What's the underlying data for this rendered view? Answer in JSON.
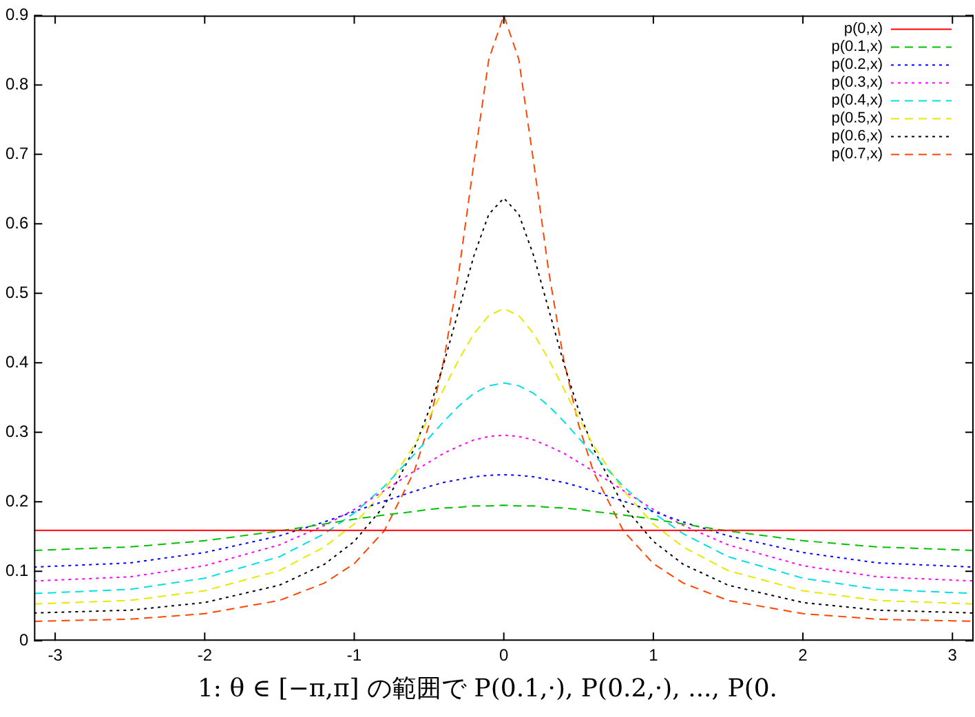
{
  "chart_data": {
    "type": "line",
    "x": [
      -3.14159,
      -2.5,
      -2,
      -1.5,
      -1.2,
      -1,
      -0.8,
      -0.6,
      -0.5,
      -0.4,
      -0.3,
      -0.2,
      -0.1,
      0,
      0.1,
      0.2,
      0.3,
      0.4,
      0.5,
      0.6,
      0.8,
      1,
      1.2,
      1.5,
      2,
      2.5,
      3.14159
    ],
    "series": [
      {
        "name": "p(0,x)",
        "color": "#ff0000",
        "line_style": "solid",
        "values": [
          0.159,
          0.159,
          0.159,
          0.159,
          0.159,
          0.159,
          0.159,
          0.159,
          0.159,
          0.159,
          0.159,
          0.159,
          0.159,
          0.159,
          0.159,
          0.159,
          0.159,
          0.159,
          0.159,
          0.159,
          0.159,
          0.159,
          0.159,
          0.159,
          0.159,
          0.159,
          0.159
        ]
      },
      {
        "name": "p(0.1,x)",
        "color": "#00c000",
        "line_style": "dashed",
        "values": [
          0.13,
          0.135,
          0.144,
          0.158,
          0.168,
          0.175,
          0.181,
          0.186,
          0.189,
          0.191,
          0.192,
          0.194,
          0.194,
          0.195,
          0.194,
          0.194,
          0.192,
          0.191,
          0.189,
          0.186,
          0.181,
          0.175,
          0.168,
          0.158,
          0.144,
          0.135,
          0.13
        ]
      },
      {
        "name": "p(0.2,x)",
        "color": "#0000ff",
        "line_style": "dotted",
        "values": [
          0.106,
          0.112,
          0.127,
          0.151,
          0.171,
          0.186,
          0.201,
          0.215,
          0.222,
          0.228,
          0.232,
          0.236,
          0.238,
          0.239,
          0.238,
          0.236,
          0.232,
          0.228,
          0.222,
          0.215,
          0.201,
          0.186,
          0.171,
          0.151,
          0.127,
          0.112,
          0.106
        ]
      },
      {
        "name": "p(0.3,x)",
        "color": "#ff00ff",
        "line_style": "dotted",
        "values": [
          0.086,
          0.092,
          0.108,
          0.138,
          0.166,
          0.189,
          0.216,
          0.244,
          0.257,
          0.27,
          0.28,
          0.289,
          0.294,
          0.296,
          0.294,
          0.289,
          0.28,
          0.27,
          0.257,
          0.244,
          0.216,
          0.189,
          0.166,
          0.138,
          0.108,
          0.092,
          0.086
        ]
      },
      {
        "name": "p(0.4,x)",
        "color": "#00e0e0",
        "line_style": "dashed",
        "values": [
          0.068,
          0.074,
          0.09,
          0.121,
          0.154,
          0.184,
          0.222,
          0.268,
          0.292,
          0.316,
          0.338,
          0.356,
          0.367,
          0.371,
          0.367,
          0.356,
          0.338,
          0.316,
          0.292,
          0.268,
          0.222,
          0.184,
          0.154,
          0.121,
          0.09,
          0.074,
          0.068
        ]
      },
      {
        "name": "p(0.5,x)",
        "color": "#e8e800",
        "line_style": "dashed",
        "values": [
          0.053,
          0.058,
          0.072,
          0.101,
          0.135,
          0.168,
          0.216,
          0.281,
          0.321,
          0.363,
          0.405,
          0.442,
          0.468,
          0.478,
          0.468,
          0.442,
          0.405,
          0.363,
          0.321,
          0.281,
          0.216,
          0.168,
          0.135,
          0.101,
          0.072,
          0.058,
          0.053
        ]
      },
      {
        "name": "p(0.6,x)",
        "color": "#000000",
        "line_style": "dotted",
        "values": [
          0.04,
          0.044,
          0.055,
          0.08,
          0.11,
          0.143,
          0.194,
          0.276,
          0.332,
          0.4,
          0.477,
          0.554,
          0.614,
          0.637,
          0.614,
          0.554,
          0.477,
          0.4,
          0.332,
          0.276,
          0.194,
          0.143,
          0.11,
          0.08,
          0.055,
          0.044,
          0.04
        ]
      },
      {
        "name": "p(0.7,x)",
        "color": "#ff4500",
        "line_style": "dashed",
        "values": [
          0.028,
          0.031,
          0.039,
          0.058,
          0.083,
          0.111,
          0.158,
          0.243,
          0.311,
          0.405,
          0.532,
          0.688,
          0.837,
          0.9,
          0.837,
          0.688,
          0.532,
          0.405,
          0.311,
          0.243,
          0.158,
          0.111,
          0.083,
          0.058,
          0.039,
          0.031,
          0.028
        ]
      }
    ],
    "xlim": [
      -3.14159,
      3.14159
    ],
    "ylim": [
      0,
      0.9
    ],
    "xticks": [
      -3,
      -2,
      -1,
      0,
      1,
      2,
      3
    ],
    "yticks": [
      0,
      0.1,
      0.2,
      0.3,
      0.4,
      0.5,
      0.6,
      0.7,
      0.8,
      0.9
    ],
    "grid": false,
    "legend": "top right",
    "marker": "none",
    "annotations": [
      "1: θ ∈ [−π,π] の範囲で P(0.1,·), P(0.2,·), ..., P(0."
    ]
  }
}
